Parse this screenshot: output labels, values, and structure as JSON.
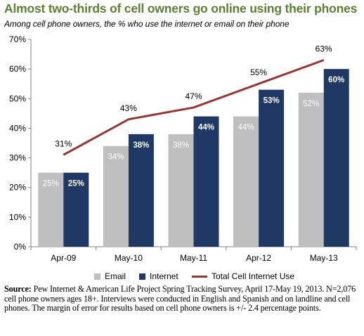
{
  "title": "Almost two-thirds of cell owners go online using their phones",
  "subtitle": "Among cell phone owners, the % who use the internet or email on their phone",
  "colors": {
    "title": "#5b7f34",
    "email": "#bfbfbf",
    "internet": "#1f3864",
    "total_line": "#953735"
  },
  "chart_data": {
    "type": "bar",
    "categories": [
      "Apr-09",
      "May-10",
      "May-11",
      "Apr-12",
      "May-13"
    ],
    "ylim": [
      0,
      70
    ],
    "yticks": [
      "0%",
      "10%",
      "20%",
      "30%",
      "40%",
      "50%",
      "60%",
      "70%"
    ],
    "grid": false,
    "legend_position": "bottom",
    "series": [
      {
        "name": "Email",
        "kind": "bar",
        "color": "#bfbfbf",
        "values": [
          25,
          34,
          38,
          44,
          52
        ],
        "labels": [
          "25%",
          "34%",
          "38%",
          "44%",
          "52%"
        ]
      },
      {
        "name": "Internet",
        "kind": "bar",
        "color": "#1f3864",
        "values": [
          25,
          38,
          44,
          53,
          60
        ],
        "labels": [
          "25%",
          "38%",
          "44%",
          "53%",
          "60%"
        ]
      },
      {
        "name": "Total Cell Internet Use",
        "kind": "line",
        "color": "#953735",
        "values": [
          31,
          43,
          47,
          55,
          63
        ],
        "labels": [
          "31%",
          "43%",
          "47%",
          "55%",
          "63%"
        ]
      }
    ]
  },
  "legend": {
    "email": "Email",
    "internet": "Internet",
    "total": "Total Cell Internet Use"
  },
  "source": {
    "label": "Source:",
    "text": " Pew Internet & American Life Project Spring Tracking Survey, April 17-May 19, 2013. N=2,076 cell phone owners ages 18+.  Interviews were conducted in English and Spanish and on landline and cell phones.  The margin of error for results based on cell phone owners is +/- 2.4 percentage points."
  }
}
